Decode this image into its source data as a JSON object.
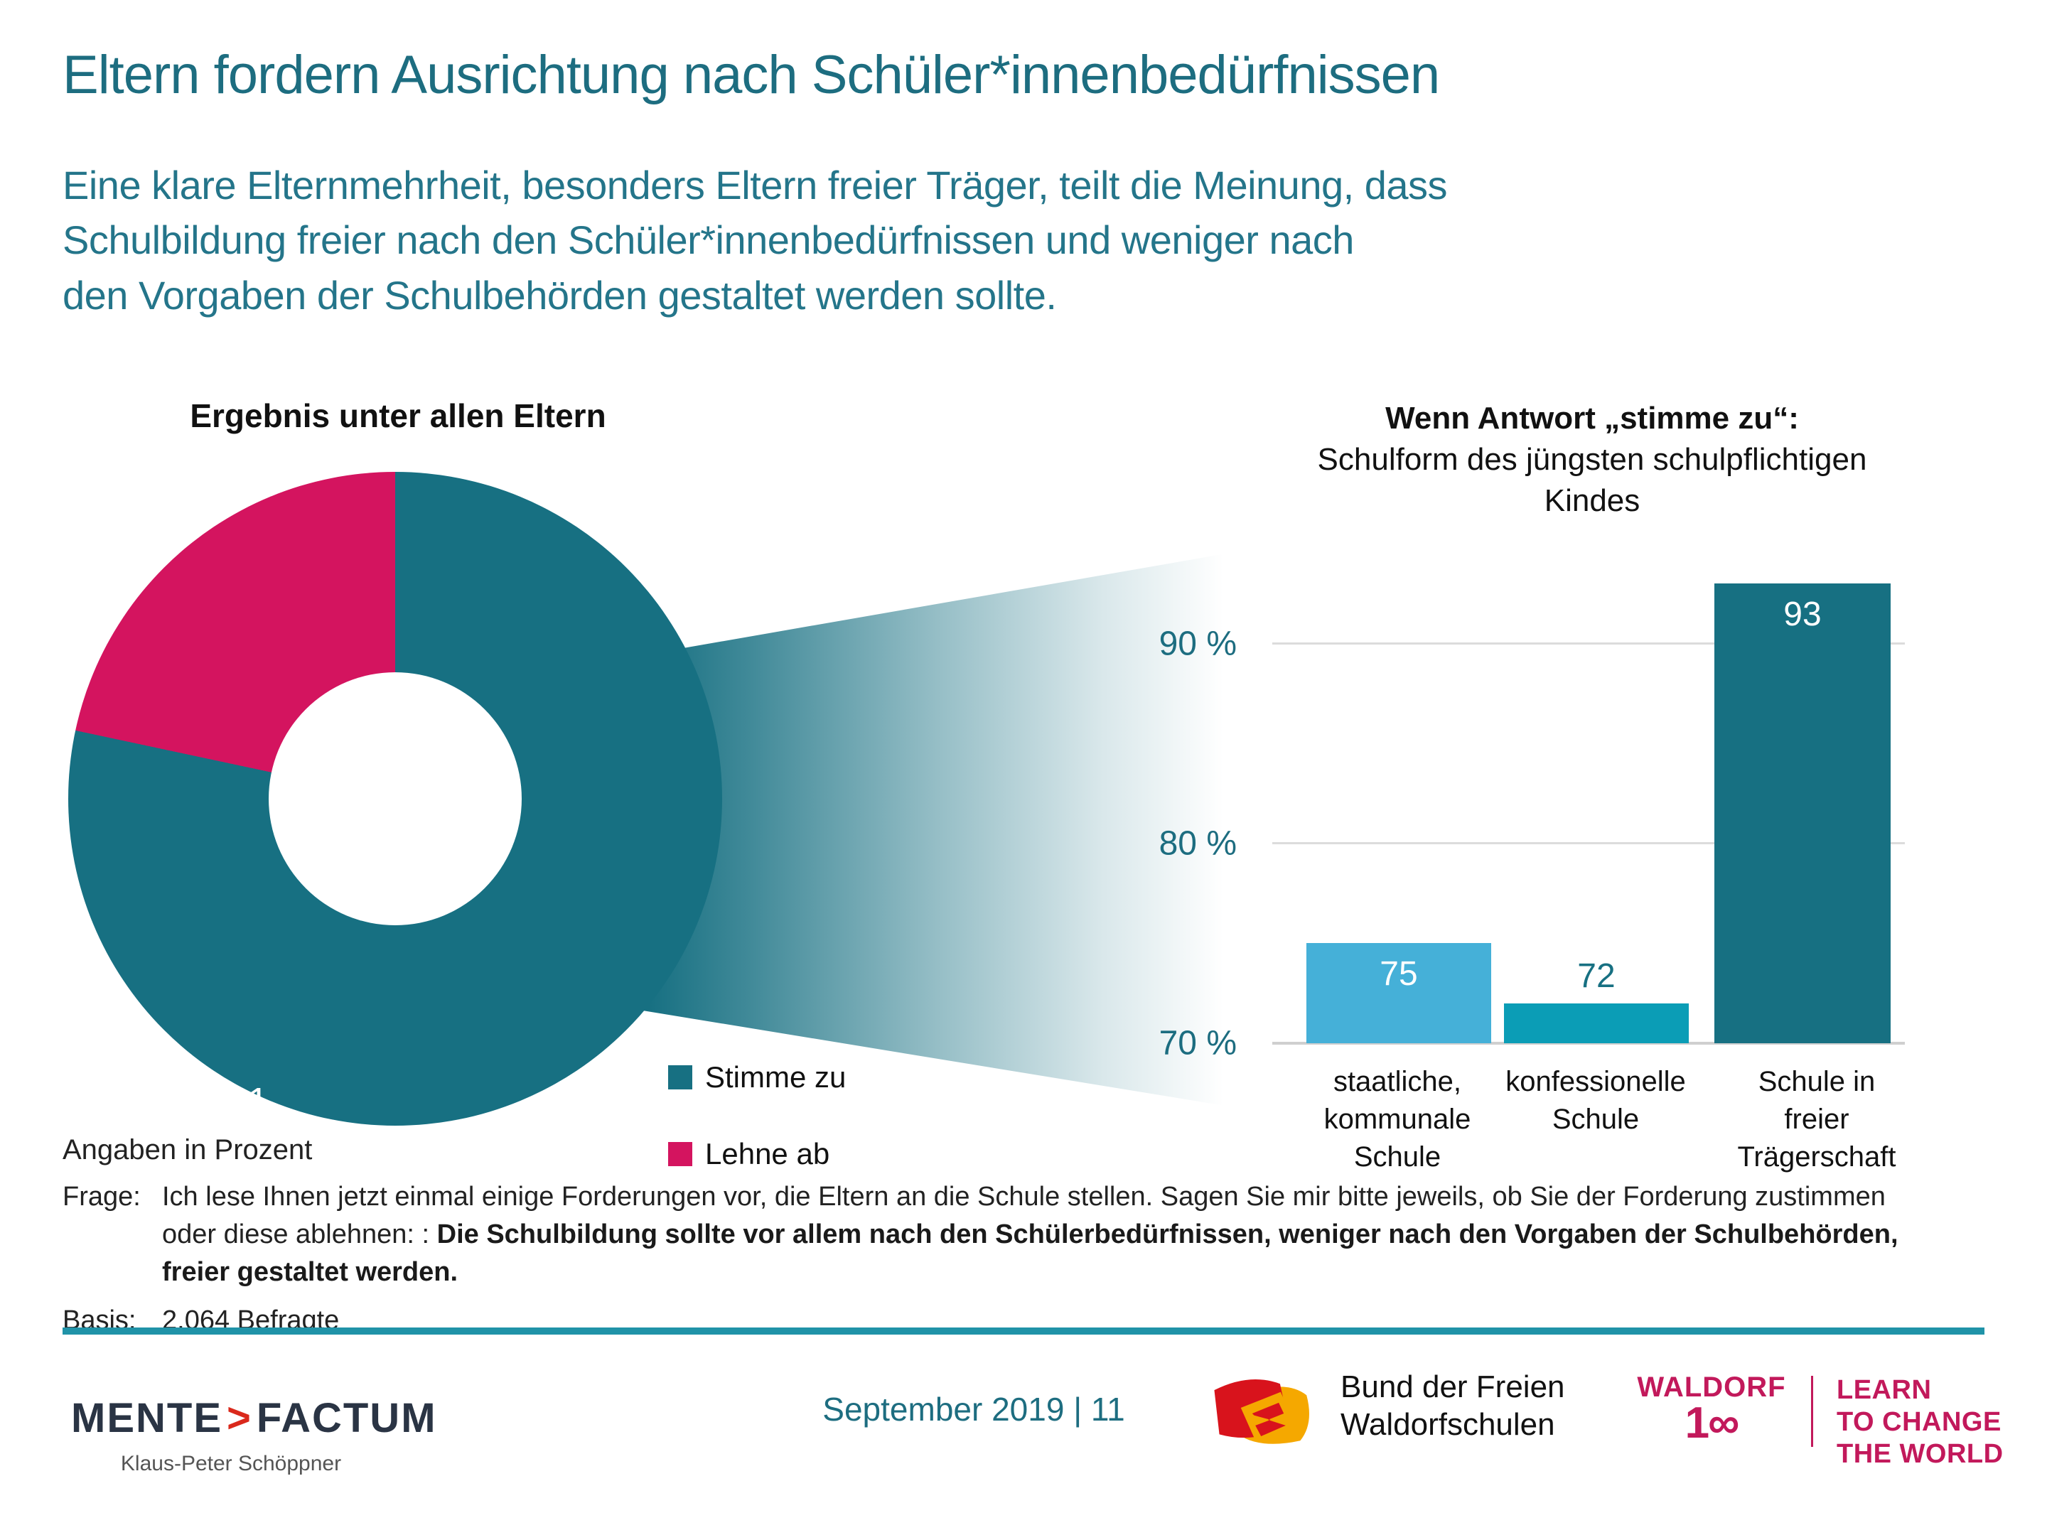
{
  "slide": {
    "title": "Eltern fordern Ausrichtung nach Schüler*innenbedürfnissen",
    "subtitle": "Eine klare Elternmehrheit, besonders Eltern freier Träger, teilt die Meinung, dass\nSchulbildung freier nach den Schüler*innenbedürfnissen und weniger nach\nden Vorgaben der Schulbehörden gestaltet werden sollte.",
    "note": "Angaben in Prozent",
    "question_label": "Frage:",
    "question_text_regular": "Ich lese Ihnen jetzt einmal einige Forderungen vor, die Eltern an die Schule stellen. Sagen Sie mir bitte jeweils, ob Sie der Forderung zustimmen oder diese ablehnen: : ",
    "question_text_bold": "Die Schulbildung sollte vor allem nach den Schülerbedürfnissen, weniger nach den Vorgaben der Schulbehörden, freier gestaltet werden.",
    "basis_label": "Basis:",
    "basis_text": "2.064 Befragte"
  },
  "legend": [
    {
      "label": "Stimme zu",
      "color": "#177082"
    },
    {
      "label": "Lehne ab",
      "color": "#d4145f"
    }
  ],
  "chart_data": [
    {
      "type": "pie",
      "variant": "donut",
      "title": "Ergebnis unter allen Eltern",
      "labels": [
        "Stimme zu",
        "Lehne ab"
      ],
      "values": [
        76,
        21
      ],
      "colors": [
        "#177082",
        "#d4145f"
      ],
      "units": "Prozent",
      "annotation": "Angaben in Prozent"
    },
    {
      "type": "bar",
      "title_line1": "Wenn Antwort „stimme zu“:",
      "title_rest": "Schulform des jüngsten schulpflichtigen\nKindes",
      "categories": [
        "staatliche,\nkommunale\nSchule",
        "konfessionelle\nSchule",
        "Schule in\nfreier\nTrägerschaft"
      ],
      "values": [
        75,
        72,
        93
      ],
      "bar_colors": [
        "#45b0d8",
        "#0b9db6",
        "#177082"
      ],
      "value_label_colors": [
        "#ffffff",
        "#177082",
        "#ffffff"
      ],
      "value_label_position": [
        "inside",
        "above",
        "inside"
      ],
      "ylim": [
        70,
        95
      ],
      "yticks": [
        {
          "label": "90 %",
          "value": 90
        },
        {
          "label": "80 %",
          "value": 80
        },
        {
          "label": "70 %",
          "value": 70
        }
      ],
      "grid": true,
      "legend_position": "none"
    }
  ],
  "footer": {
    "mentefactum": {
      "part1": "MENTE",
      "chevron": ">",
      "part2": "FACTUM",
      "person": "Klaus-Peter Schöppner"
    },
    "date_page": "September 2019 | 11",
    "bund_text": "Bund der Freien\nWaldorfschulen",
    "waldorf": {
      "line1": "WALDORF",
      "num_prefix": "1",
      "num_infinity": "∞",
      "learn": "LEARN\nTO CHANGE\nTHE WORLD"
    }
  },
  "colors": {
    "accent_teal": "#177082",
    "accent_pink": "#d4145f",
    "light_blue": "#45b0d8",
    "cyan": "#0b9db6",
    "heading_teal": "#1d6d80",
    "rule_teal": "#2093a8",
    "waldorf_crimson": "#c2195b",
    "mente_navy": "#2a3444",
    "mente_red": "#da291c",
    "grid_gray": "#dcdcdc"
  }
}
